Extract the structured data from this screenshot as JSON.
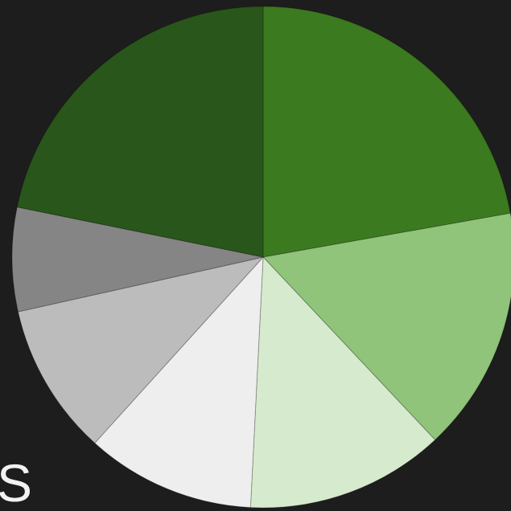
{
  "chart_data": {
    "type": "pie",
    "values": [
      22.2,
      15.8,
      12.8,
      10.9,
      9.8,
      6.7,
      21.8
    ],
    "colors": [
      "#3b7a1e",
      "#8fc47a",
      "#d6ebcd",
      "#eeeeee",
      "#bcbcbc",
      "#858585",
      "#29561a"
    ],
    "start_angle": 0,
    "direction": "clockwise",
    "caption": "S"
  }
}
